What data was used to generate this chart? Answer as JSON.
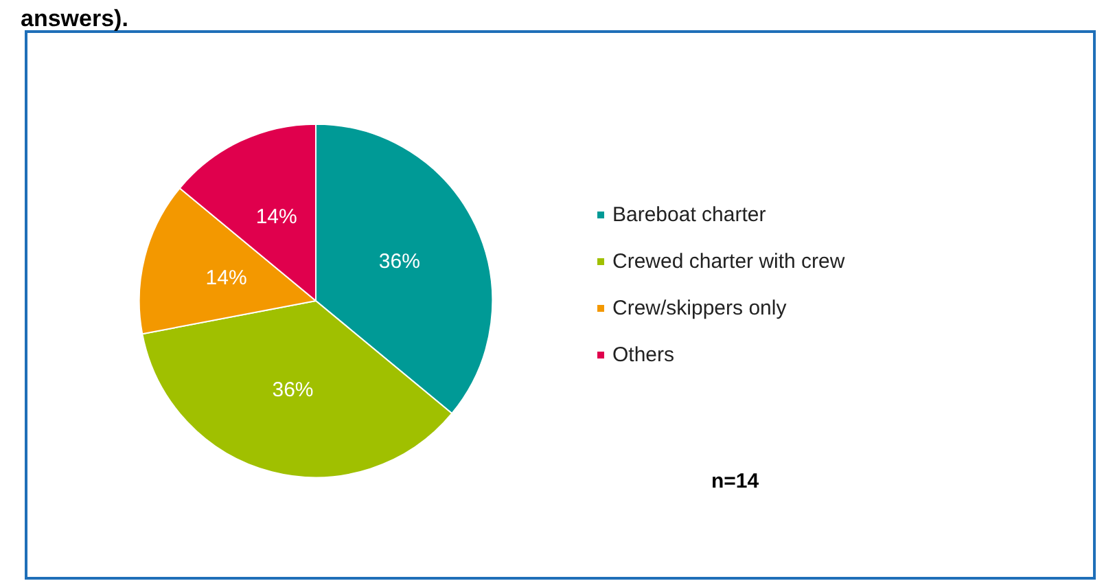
{
  "chart_data": {
    "type": "pie",
    "title": "answers).",
    "categories": [
      "Bareboat charter",
      "Crewed charter with crew",
      "Crew/skippers only",
      "Others"
    ],
    "values": [
      36,
      36,
      14,
      14
    ],
    "colors": [
      "#009a96",
      "#a0c000",
      "#f39800",
      "#e0004d"
    ],
    "value_labels": [
      "36%",
      "36%",
      "14%",
      "14%"
    ],
    "legend": "right",
    "annotations": [
      "n=14"
    ]
  }
}
